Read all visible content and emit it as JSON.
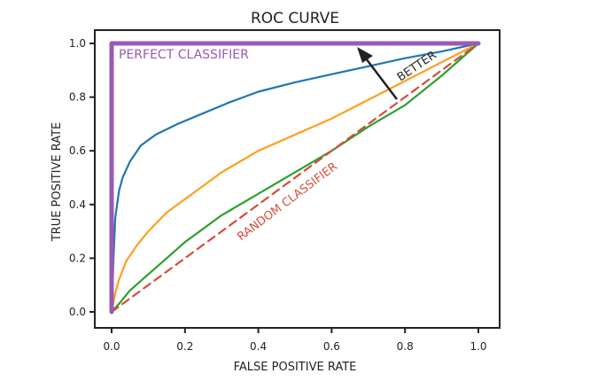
{
  "chart_data": {
    "type": "line",
    "title": "ROC CURVE",
    "xlabel": "FALSE POSITIVE RATE",
    "ylabel": "TRUE POSITIVE RATE",
    "xlim": [
      0,
      1
    ],
    "ylim": [
      0,
      1
    ],
    "xticks": [
      "0.0",
      "0.2",
      "0.4",
      "0.6",
      "0.8",
      "1.0"
    ],
    "yticks": [
      "0.0",
      "0.2",
      "0.4",
      "0.6",
      "0.8",
      "1.0"
    ],
    "grid": false,
    "series": [
      {
        "color": "#1f77b4",
        "x": [
          0.0,
          0.005,
          0.01,
          0.02,
          0.03,
          0.05,
          0.08,
          0.12,
          0.18,
          0.25,
          0.32,
          0.4,
          0.5,
          0.6,
          0.7,
          0.8,
          0.9,
          1.0
        ],
        "y": [
          0.0,
          0.2,
          0.35,
          0.45,
          0.5,
          0.56,
          0.62,
          0.66,
          0.7,
          0.74,
          0.78,
          0.82,
          0.855,
          0.885,
          0.915,
          0.945,
          0.97,
          1.0
        ]
      },
      {
        "color": "#ff9f1c",
        "x": [
          0.0,
          0.01,
          0.02,
          0.04,
          0.07,
          0.1,
          0.15,
          0.2,
          0.25,
          0.3,
          0.35,
          0.4,
          0.5,
          0.6,
          0.7,
          0.8,
          0.9,
          1.0
        ],
        "y": [
          0.0,
          0.07,
          0.12,
          0.19,
          0.25,
          0.3,
          0.37,
          0.42,
          0.47,
          0.52,
          0.56,
          0.6,
          0.66,
          0.72,
          0.79,
          0.86,
          0.93,
          1.0
        ]
      },
      {
        "color": "#2ca02c",
        "x": [
          0.0,
          0.02,
          0.05,
          0.1,
          0.15,
          0.2,
          0.3,
          0.4,
          0.5,
          0.6,
          0.7,
          0.8,
          0.9,
          1.0
        ],
        "y": [
          0.0,
          0.03,
          0.08,
          0.14,
          0.2,
          0.26,
          0.36,
          0.44,
          0.52,
          0.6,
          0.69,
          0.77,
          0.88,
          1.0
        ]
      },
      {
        "color": "#d94a3a",
        "dashed": true,
        "x": [
          0.0,
          1.0
        ],
        "y": [
          0.0,
          1.0
        ]
      },
      {
        "color": "#9b59b6",
        "thick": true,
        "x": [
          0.0,
          0.0,
          1.0
        ],
        "y": [
          0.0,
          1.0,
          1.0
        ]
      }
    ],
    "annotations": [
      {
        "text": "PERFECT CLASSIFIER",
        "color": "#9b59b6"
      },
      {
        "text": "RANDOM CLASSIFIER",
        "color": "#d94a3a"
      },
      {
        "text": "BETTER",
        "color": "#222222"
      }
    ]
  }
}
